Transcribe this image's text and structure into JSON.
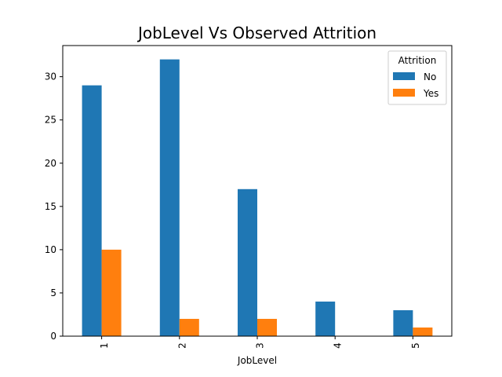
{
  "chart_data": {
    "type": "bar",
    "title": "JobLevel Vs Observed Attrition",
    "xlabel": "JobLevel",
    "ylabel": "",
    "categories": [
      "1",
      "2",
      "3",
      "4",
      "5"
    ],
    "series": [
      {
        "name": "No",
        "values": [
          29,
          32,
          17,
          4,
          3
        ],
        "color": "#1f77b4"
      },
      {
        "name": "Yes",
        "values": [
          10,
          2,
          2,
          0,
          1
        ],
        "color": "#ff7f0e"
      }
    ],
    "ylim": [
      0,
      33.6
    ],
    "yticks": [
      0,
      5,
      10,
      15,
      20,
      25,
      30
    ],
    "legend": {
      "title": "Attrition",
      "placement": "top-right"
    },
    "grid": false
  }
}
